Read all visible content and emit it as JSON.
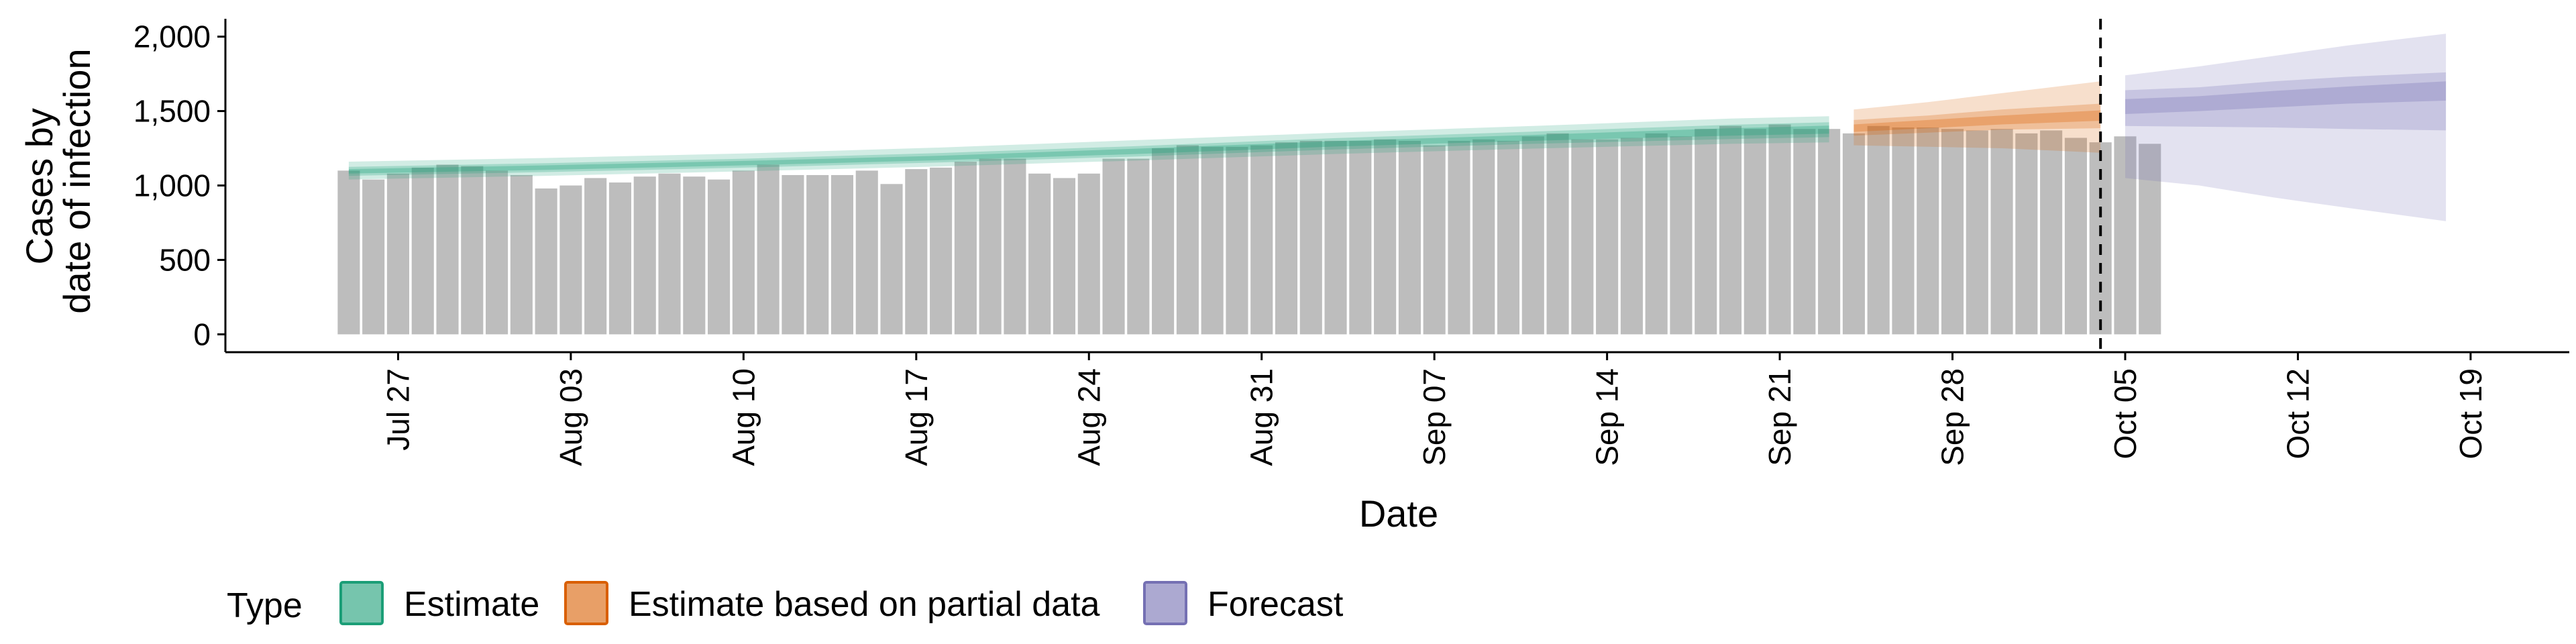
{
  "chart_data": {
    "type": "bar",
    "title": "",
    "xlabel": "Date",
    "ylabel_lines": [
      "Cases by",
      "date of infection"
    ],
    "ylim": [
      -120,
      2120
    ],
    "y_ticks": [
      0,
      500,
      1000,
      1500,
      2000
    ],
    "y_tick_labels": [
      "0",
      "500",
      "1,000",
      "1,500",
      "2,000"
    ],
    "x_range_start": "2020-07-20",
    "x_range_end": "2020-10-23",
    "x_ticks": [
      "2020-07-27",
      "2020-08-03",
      "2020-08-10",
      "2020-08-17",
      "2020-08-24",
      "2020-08-31",
      "2020-09-07",
      "2020-09-14",
      "2020-09-21",
      "2020-09-28",
      "2020-10-05",
      "2020-10-12",
      "2020-10-19"
    ],
    "x_tick_labels": [
      "Jul 27",
      "Aug 03",
      "Aug 10",
      "Aug 17",
      "Aug 24",
      "Aug 31",
      "Sep 07",
      "Sep 14",
      "Sep 21",
      "Sep 28",
      "Oct 05",
      "Oct 12",
      "Oct 19"
    ],
    "vline_date": "2020-10-04",
    "grid": false,
    "bars": {
      "start_date": "2020-07-25",
      "values": [
        1100,
        1040,
        1080,
        1120,
        1140,
        1130,
        1100,
        1070,
        980,
        1000,
        1050,
        1020,
        1060,
        1080,
        1060,
        1040,
        1100,
        1140,
        1070,
        1070,
        1070,
        1100,
        1010,
        1110,
        1120,
        1160,
        1180,
        1180,
        1080,
        1050,
        1080,
        1180,
        1180,
        1250,
        1270,
        1260,
        1260,
        1270,
        1290,
        1300,
        1300,
        1300,
        1310,
        1300,
        1270,
        1300,
        1310,
        1300,
        1330,
        1350,
        1310,
        1310,
        1320,
        1350,
        1330,
        1380,
        1400,
        1380,
        1410,
        1380,
        1380,
        1350,
        1400,
        1390,
        1390,
        1380,
        1370,
        1380,
        1350,
        1370,
        1320,
        1290,
        1330,
        1280
      ]
    },
    "series": [
      {
        "name": "Estimate",
        "color": "#1b9e77",
        "dates": [
          "2020-07-25",
          "2020-08-02",
          "2020-08-10",
          "2020-08-18",
          "2020-08-26",
          "2020-09-03",
          "2020-09-11",
          "2020-09-19",
          "2020-09-23"
        ],
        "median": [
          1095,
          1120,
          1150,
          1185,
          1230,
          1280,
          1320,
          1360,
          1375
        ],
        "lower_20": [
          1080,
          1105,
          1135,
          1170,
          1212,
          1262,
          1300,
          1335,
          1348
        ],
        "upper_20": [
          1110,
          1135,
          1165,
          1200,
          1248,
          1298,
          1340,
          1385,
          1402
        ],
        "lower_50": [
          1065,
          1090,
          1120,
          1155,
          1195,
          1242,
          1280,
          1312,
          1325
        ],
        "upper_50": [
          1125,
          1150,
          1180,
          1218,
          1265,
          1318,
          1362,
          1408,
          1425
        ],
        "lower_90": [
          1040,
          1065,
          1095,
          1128,
          1168,
          1212,
          1248,
          1280,
          1290
        ],
        "upper_90": [
          1160,
          1185,
          1215,
          1255,
          1305,
          1355,
          1400,
          1450,
          1465
        ]
      },
      {
        "name": "Estimate based on partial data",
        "color": "#d95f02",
        "dates": [
          "2020-09-24",
          "2020-09-27",
          "2020-09-30",
          "2020-10-04"
        ],
        "median": [
          1385,
          1410,
          1440,
          1470
        ],
        "lower_20": [
          1360,
          1385,
          1410,
          1435
        ],
        "upper_20": [
          1410,
          1440,
          1470,
          1505
        ],
        "lower_50": [
          1335,
          1355,
          1375,
          1385
        ],
        "upper_50": [
          1440,
          1470,
          1510,
          1550
        ],
        "lower_90": [
          1270,
          1260,
          1250,
          1220
        ],
        "upper_90": [
          1510,
          1560,
          1620,
          1700
        ]
      },
      {
        "name": "Forecast",
        "color": "#7570b3",
        "dates": [
          "2020-10-05",
          "2020-10-08",
          "2020-10-11",
          "2020-10-14",
          "2020-10-18"
        ],
        "median": [
          1530,
          1550,
          1580,
          1610,
          1640
        ],
        "lower_20": [
          1480,
          1500,
          1525,
          1550,
          1570
        ],
        "upper_20": [
          1580,
          1600,
          1635,
          1665,
          1700
        ],
        "lower_50": [
          1400,
          1395,
          1390,
          1380,
          1370
        ],
        "upper_50": [
          1640,
          1660,
          1700,
          1730,
          1760
        ],
        "lower_90": [
          1050,
          1000,
          920,
          850,
          760
        ],
        "upper_90": [
          1740,
          1800,
          1870,
          1940,
          2020
        ]
      }
    ],
    "legend": {
      "title": "Type",
      "position": "bottom-left",
      "items": [
        {
          "label": "Estimate",
          "color": "#1b9e77"
        },
        {
          "label": "Estimate based on partial data",
          "color": "#d95f02"
        },
        {
          "label": "Forecast",
          "color": "#7570b3"
        }
      ]
    },
    "bar_color": "#bdbdbd"
  }
}
